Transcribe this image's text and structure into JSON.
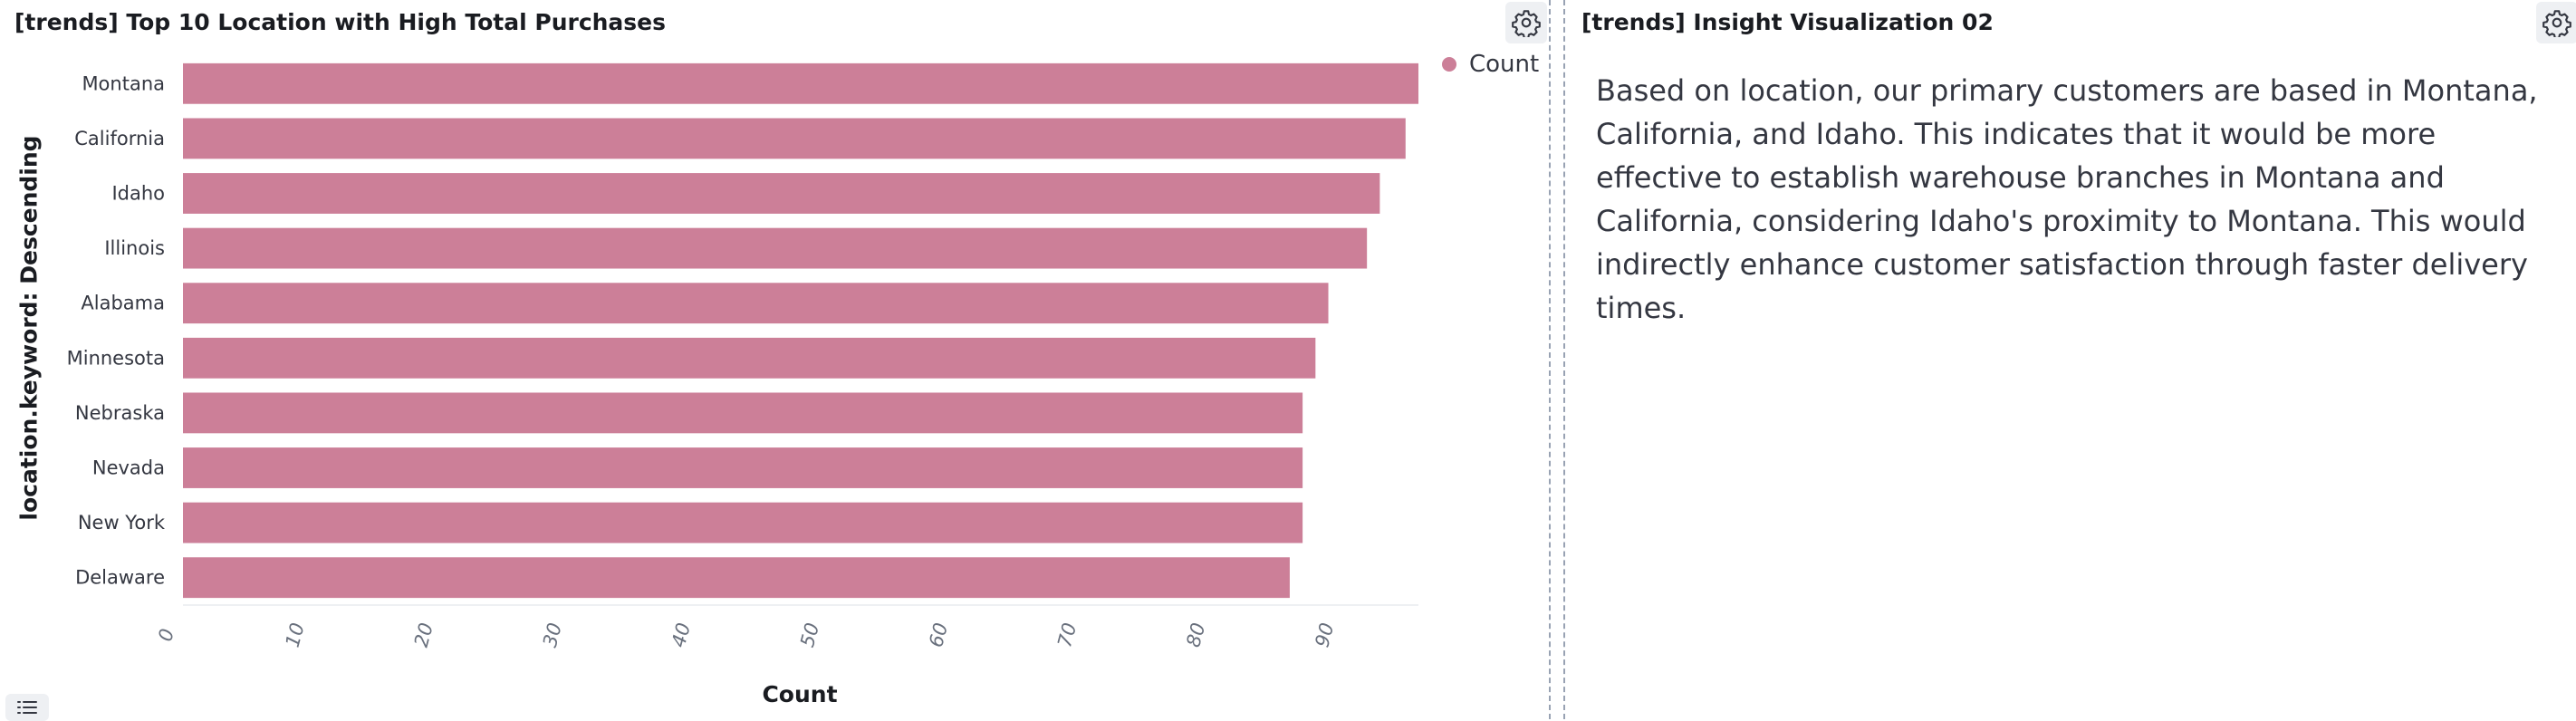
{
  "left_panel": {
    "title": "[trends] Top 10 Location with High Total Purchases"
  },
  "right_panel": {
    "title": "[trends] Insight Visualization 02",
    "insight_text": "Based on location, our primary customers are based in Montana, California, and Idaho. This indicates that it would be more effective to establish warehouse branches in Montana and California, considering Idaho's proximity to Montana. This would indirectly enhance customer satisfaction through faster delivery times."
  },
  "icons": {
    "gear": "gear-icon",
    "list": "list-icon"
  },
  "colors": {
    "bar": "#cc7f98",
    "grid": "#eef0f3"
  },
  "chart_data": {
    "type": "bar",
    "orientation": "horizontal",
    "categories": [
      "Montana",
      "California",
      "Idaho",
      "Illinois",
      "Alabama",
      "Minnesota",
      "Nebraska",
      "Nevada",
      "New York",
      "Delaware"
    ],
    "series": [
      {
        "name": "Count",
        "values": [
          96,
          95,
          93,
          92,
          89,
          88,
          87,
          87,
          87,
          86
        ]
      }
    ],
    "xlabel": "Count",
    "ylabel": "location.keyword: Descending",
    "x_ticks": [
      0,
      10,
      20,
      30,
      40,
      50,
      60,
      70,
      80,
      90
    ],
    "xlim": [
      0,
      96
    ],
    "legend": {
      "position": "top-right",
      "entries": [
        "Count"
      ]
    },
    "grid": false
  }
}
